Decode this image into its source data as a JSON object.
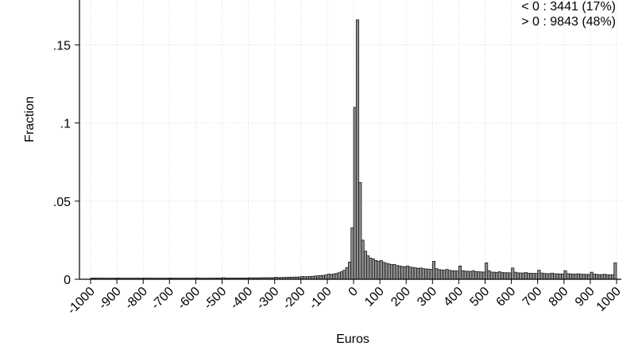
{
  "chart_data": {
    "type": "bar",
    "title": "",
    "xlabel": "Euros",
    "ylabel": "Fraction",
    "xlim": [
      -1000,
      1000
    ],
    "ylim": [
      0,
      0.165
    ],
    "grid": true,
    "bin_width": 10,
    "x_tick_labels": [
      "-1000",
      "-900",
      "-800",
      "-700",
      "-600",
      "-500",
      "-400",
      "-300",
      "-200",
      "-100",
      "0",
      "100",
      "200",
      "300",
      "400",
      "500",
      "600",
      "700",
      "800",
      "900",
      "1000"
    ],
    "y_ticks": [
      0,
      0.05,
      0.1,
      0.15
    ],
    "y_tick_labels": [
      "0",
      ".05",
      ".1",
      ".15"
    ],
    "annotations": [
      "< 0 : 3441 (17%)",
      "> 0 : 9843 (48%)"
    ],
    "bins": [
      [
        -1000,
        0.0008
      ],
      [
        -990,
        0.0008
      ],
      [
        -980,
        0.0008
      ],
      [
        -970,
        0.0007
      ],
      [
        -960,
        0.0007
      ],
      [
        -950,
        0.0007
      ],
      [
        -940,
        0.0007
      ],
      [
        -930,
        0.0007
      ],
      [
        -920,
        0.0007
      ],
      [
        -910,
        0.0007
      ],
      [
        -900,
        0.0008
      ],
      [
        -890,
        0.0007
      ],
      [
        -880,
        0.0007
      ],
      [
        -870,
        0.0007
      ],
      [
        -860,
        0.0007
      ],
      [
        -850,
        0.0007
      ],
      [
        -840,
        0.0007
      ],
      [
        -830,
        0.0007
      ],
      [
        -820,
        0.0007
      ],
      [
        -810,
        0.0007
      ],
      [
        -800,
        0.0008
      ],
      [
        -790,
        0.0007
      ],
      [
        -780,
        0.0007
      ],
      [
        -770,
        0.0007
      ],
      [
        -760,
        0.0007
      ],
      [
        -750,
        0.0007
      ],
      [
        -740,
        0.0007
      ],
      [
        -730,
        0.0007
      ],
      [
        -720,
        0.0007
      ],
      [
        -710,
        0.0007
      ],
      [
        -700,
        0.0008
      ],
      [
        -690,
        0.0007
      ],
      [
        -680,
        0.0007
      ],
      [
        -670,
        0.0007
      ],
      [
        -660,
        0.0007
      ],
      [
        -650,
        0.0007
      ],
      [
        -640,
        0.0007
      ],
      [
        -630,
        0.0007
      ],
      [
        -620,
        0.0007
      ],
      [
        -610,
        0.0007
      ],
      [
        -600,
        0.0009
      ],
      [
        -590,
        0.0007
      ],
      [
        -580,
        0.0007
      ],
      [
        -570,
        0.0007
      ],
      [
        -560,
        0.0007
      ],
      [
        -550,
        0.0007
      ],
      [
        -540,
        0.0007
      ],
      [
        -530,
        0.0008
      ],
      [
        -520,
        0.0008
      ],
      [
        -510,
        0.0008
      ],
      [
        -500,
        0.001
      ],
      [
        -490,
        0.0008
      ],
      [
        -480,
        0.0008
      ],
      [
        -470,
        0.0008
      ],
      [
        -460,
        0.0008
      ],
      [
        -450,
        0.0008
      ],
      [
        -440,
        0.0008
      ],
      [
        -430,
        0.0008
      ],
      [
        -420,
        0.0008
      ],
      [
        -410,
        0.0008
      ],
      [
        -400,
        0.001
      ],
      [
        -390,
        0.0009
      ],
      [
        -380,
        0.0009
      ],
      [
        -370,
        0.0009
      ],
      [
        -360,
        0.0009
      ],
      [
        -350,
        0.001
      ],
      [
        -340,
        0.001
      ],
      [
        -330,
        0.001
      ],
      [
        -320,
        0.001
      ],
      [
        -310,
        0.001
      ],
      [
        -300,
        0.0013
      ],
      [
        -290,
        0.0011
      ],
      [
        -280,
        0.0011
      ],
      [
        -270,
        0.0012
      ],
      [
        -260,
        0.0012
      ],
      [
        -250,
        0.0013
      ],
      [
        -240,
        0.0013
      ],
      [
        -230,
        0.0014
      ],
      [
        -220,
        0.0014
      ],
      [
        -210,
        0.0015
      ],
      [
        -200,
        0.0018
      ],
      [
        -190,
        0.0016
      ],
      [
        -180,
        0.0017
      ],
      [
        -170,
        0.0018
      ],
      [
        -160,
        0.0019
      ],
      [
        -150,
        0.0021
      ],
      [
        -140,
        0.0022
      ],
      [
        -130,
        0.0024
      ],
      [
        -120,
        0.0025
      ],
      [
        -110,
        0.0027
      ],
      [
        -100,
        0.0033
      ],
      [
        -90,
        0.0031
      ],
      [
        -80,
        0.0034
      ],
      [
        -70,
        0.0037
      ],
      [
        -60,
        0.0042
      ],
      [
        -50,
        0.0048
      ],
      [
        -40,
        0.0058
      ],
      [
        -30,
        0.0075
      ],
      [
        -20,
        0.011
      ],
      [
        -10,
        0.033
      ],
      [
        0,
        0.11
      ],
      [
        10,
        0.166
      ],
      [
        20,
        0.062
      ],
      [
        30,
        0.025
      ],
      [
        40,
        0.018
      ],
      [
        50,
        0.015
      ],
      [
        60,
        0.0135
      ],
      [
        70,
        0.013
      ],
      [
        80,
        0.012
      ],
      [
        90,
        0.0115
      ],
      [
        100,
        0.012
      ],
      [
        110,
        0.0108
      ],
      [
        120,
        0.0102
      ],
      [
        130,
        0.0098
      ],
      [
        140,
        0.0094
      ],
      [
        150,
        0.0095
      ],
      [
        160,
        0.0088
      ],
      [
        170,
        0.0085
      ],
      [
        180,
        0.0082
      ],
      [
        190,
        0.008
      ],
      [
        200,
        0.0085
      ],
      [
        210,
        0.0078
      ],
      [
        220,
        0.0076
      ],
      [
        230,
        0.0073
      ],
      [
        240,
        0.007
      ],
      [
        250,
        0.0072
      ],
      [
        260,
        0.0068
      ],
      [
        270,
        0.0066
      ],
      [
        280,
        0.0065
      ],
      [
        290,
        0.0063
      ],
      [
        300,
        0.0115
      ],
      [
        310,
        0.0068
      ],
      [
        320,
        0.0062
      ],
      [
        330,
        0.006
      ],
      [
        340,
        0.0058
      ],
      [
        350,
        0.0063
      ],
      [
        360,
        0.0057
      ],
      [
        370,
        0.0055
      ],
      [
        380,
        0.0054
      ],
      [
        390,
        0.0053
      ],
      [
        400,
        0.0085
      ],
      [
        410,
        0.0055
      ],
      [
        420,
        0.0052
      ],
      [
        430,
        0.0051
      ],
      [
        440,
        0.005
      ],
      [
        450,
        0.0055
      ],
      [
        460,
        0.0049
      ],
      [
        470,
        0.0048
      ],
      [
        480,
        0.0047
      ],
      [
        490,
        0.0046
      ],
      [
        500,
        0.0105
      ],
      [
        510,
        0.0055
      ],
      [
        520,
        0.0046
      ],
      [
        530,
        0.0045
      ],
      [
        540,
        0.0044
      ],
      [
        550,
        0.0048
      ],
      [
        560,
        0.0043
      ],
      [
        570,
        0.0042
      ],
      [
        580,
        0.0042
      ],
      [
        590,
        0.0041
      ],
      [
        600,
        0.0072
      ],
      [
        610,
        0.0045
      ],
      [
        620,
        0.0041
      ],
      [
        630,
        0.004
      ],
      [
        640,
        0.004
      ],
      [
        650,
        0.0043
      ],
      [
        660,
        0.0039
      ],
      [
        670,
        0.0038
      ],
      [
        680,
        0.0038
      ],
      [
        690,
        0.0037
      ],
      [
        700,
        0.0058
      ],
      [
        710,
        0.004
      ],
      [
        720,
        0.0037
      ],
      [
        730,
        0.0036
      ],
      [
        740,
        0.0036
      ],
      [
        750,
        0.0039
      ],
      [
        760,
        0.0035
      ],
      [
        770,
        0.0035
      ],
      [
        780,
        0.0034
      ],
      [
        790,
        0.0034
      ],
      [
        800,
        0.0055
      ],
      [
        810,
        0.0036
      ],
      [
        820,
        0.0034
      ],
      [
        830,
        0.0033
      ],
      [
        840,
        0.0033
      ],
      [
        850,
        0.0035
      ],
      [
        860,
        0.0032
      ],
      [
        870,
        0.0032
      ],
      [
        880,
        0.0031
      ],
      [
        890,
        0.0031
      ],
      [
        900,
        0.0045
      ],
      [
        910,
        0.0033
      ],
      [
        920,
        0.0031
      ],
      [
        930,
        0.003
      ],
      [
        940,
        0.003
      ],
      [
        950,
        0.0032
      ],
      [
        960,
        0.0029
      ],
      [
        970,
        0.0029
      ],
      [
        980,
        0.0029
      ],
      [
        990,
        0.0105
      ]
    ]
  }
}
